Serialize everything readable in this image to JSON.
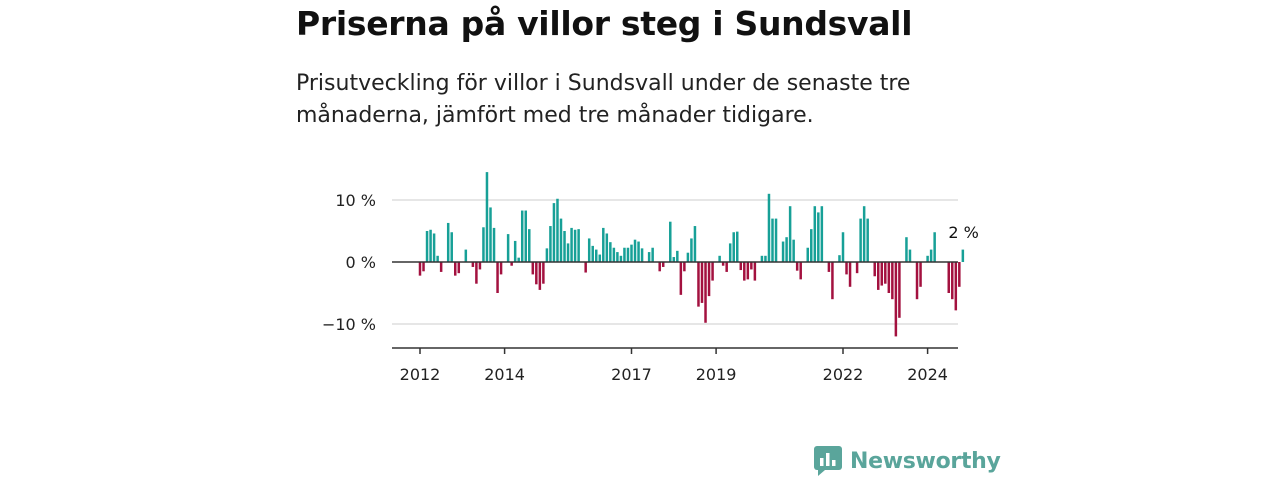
{
  "title": "Priserna på villor steg i Sundsvall",
  "subtitle": "Prisutveckling för villor i Sundsvall under de senaste tre månaderna, jämfört med tre månader tidigare.",
  "brand": {
    "name": "Newsworthy",
    "icon": "newsworthy-logo-icon",
    "color": "#5aa59b"
  },
  "colors": {
    "positive": "#17a097",
    "negative": "#a3113f",
    "grid": "#dddddd",
    "axis": "#333333"
  },
  "chart_data": {
    "type": "bar",
    "y_unit": "%",
    "ylim": [
      -14,
      16
    ],
    "y_ticks": [
      {
        "value": 10,
        "label": "10 %"
      },
      {
        "value": 0,
        "label": "0 %"
      },
      {
        "value": -10,
        "label": "−10 %"
      }
    ],
    "x_ticks": [
      {
        "index": 0,
        "label": "2012"
      },
      {
        "index": 24,
        "label": "2014"
      },
      {
        "index": 60,
        "label": "2017"
      },
      {
        "index": 84,
        "label": "2019"
      },
      {
        "index": 120,
        "label": "2022"
      },
      {
        "index": 144,
        "label": "2024"
      }
    ],
    "grid": true,
    "end_label": "2 %",
    "values": [
      -2.2,
      -1.5,
      5.0,
      5.2,
      4.6,
      1.0,
      -1.6,
      0,
      6.3,
      4.8,
      -2.2,
      -1.8,
      0,
      2.0,
      0,
      -0.8,
      -3.5,
      -1.2,
      5.6,
      14.5,
      8.8,
      5.5,
      -5.0,
      -2.0,
      0,
      4.5,
      -0.6,
      3.4,
      0.7,
      8.3,
      8.3,
      5.3,
      -2.0,
      -3.6,
      -4.5,
      -3.5,
      2.2,
      5.8,
      9.5,
      10.2,
      7.0,
      5.0,
      3.0,
      5.5,
      5.2,
      5.3,
      0,
      -1.7,
      3.8,
      2.6,
      2.0,
      1.2,
      5.5,
      4.6,
      3.2,
      2.3,
      1.6,
      1.0,
      2.3,
      2.3,
      2.8,
      3.6,
      3.3,
      2.2,
      0,
      1.6,
      2.3,
      0,
      -1.5,
      -0.8,
      0,
      6.5,
      0.8,
      1.8,
      -5.3,
      -1.5,
      1.5,
      3.8,
      5.8,
      -7.2,
      -6.6,
      -9.8,
      -5.5,
      -3.0,
      0,
      1.0,
      -0.6,
      -1.6,
      3.0,
      4.8,
      4.9,
      -1.3,
      -3.0,
      -2.8,
      -1.2,
      -3.0,
      0,
      1.0,
      1.0,
      11.0,
      7.0,
      7.0,
      0,
      3.3,
      4.0,
      9.0,
      3.6,
      -1.4,
      -2.8,
      0,
      2.3,
      5.3,
      9.0,
      8.0,
      9.0,
      0,
      -1.6,
      -6.0,
      0,
      1.1,
      4.8,
      -2.0,
      -4.0,
      0,
      -1.8,
      7.0,
      9.0,
      7.0,
      0,
      -2.3,
      -4.5,
      -3.8,
      -3.5,
      -5.0,
      -6.0,
      -12.0,
      -9.0,
      0,
      4.0,
      2.0,
      0,
      -6.0,
      -4.0,
      0,
      1.0,
      2.0,
      4.8,
      0,
      0,
      0,
      -5.0,
      -6.0,
      -7.8,
      -4.0,
      2.0
    ]
  }
}
